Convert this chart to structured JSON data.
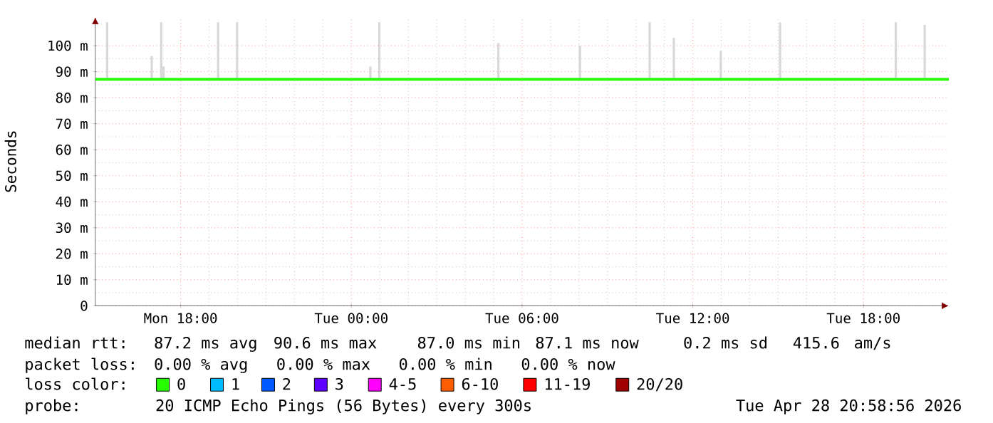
{
  "chart_data": {
    "type": "line",
    "ylabel": "Seconds",
    "xlim": [
      "2026-04-27T15:00",
      "2026-04-28T21:00"
    ],
    "xticks": [
      {
        "value": "2026-04-27T18:00",
        "label": "Mon 18:00"
      },
      {
        "value": "2026-04-28T00:00",
        "label": "Tue 00:00"
      },
      {
        "value": "2026-04-28T06:00",
        "label": "Tue 06:00"
      },
      {
        "value": "2026-04-28T12:00",
        "label": "Tue 12:00"
      },
      {
        "value": "2026-04-28T18:00",
        "label": "Tue 18:00"
      }
    ],
    "ylim": [
      0,
      111
    ],
    "yticks": [
      0,
      {
        "value": 10,
        "label": "10 m"
      },
      {
        "value": 20,
        "label": "20 m"
      },
      {
        "value": 30,
        "label": "30 m"
      },
      {
        "value": 40,
        "label": "40 m"
      },
      {
        "value": 50,
        "label": "50 m"
      },
      {
        "value": 60,
        "label": "60 m"
      },
      {
        "value": 70,
        "label": "70 m"
      },
      {
        "value": 80,
        "label": "80 m"
      },
      {
        "value": 90,
        "label": "90 m"
      },
      {
        "value": 100,
        "label": "100 m"
      }
    ],
    "grid": true,
    "legend": "bottom",
    "legend_title": "loss color:",
    "series": [
      {
        "type": "bar",
        "color": "#d8d8d8",
        "x": [
          "2026-04-27T15:25",
          "2026-04-27T16:59",
          "2026-04-27T17:19",
          "2026-04-27T17:24",
          "2026-04-27T19:19",
          "2026-04-27T19:59",
          "2026-04-28T00:40",
          "2026-04-28T00:59",
          "2026-04-28T05:10",
          "2026-04-28T08:02",
          "2026-04-28T10:29",
          "2026-04-28T11:20",
          "2026-04-28T12:59",
          "2026-04-28T15:04",
          "2026-04-28T19:08",
          "2026-04-28T20:09"
        ],
        "base": [
          87,
          87,
          87,
          87,
          87,
          87,
          87,
          87,
          87,
          87,
          87,
          87,
          87,
          87,
          87,
          87
        ],
        "values": [
          22,
          9,
          22,
          5,
          22,
          22,
          5,
          22,
          14,
          13,
          22,
          16,
          11,
          22,
          22,
          21
        ]
      },
      {
        "name": "0",
        "color": "#26ff00",
        "x": [
          "2026-04-27T15:00",
          "2026-04-28T21:00"
        ],
        "values": [
          87,
          87
        ]
      },
      {
        "name": "1",
        "color": "#00bbff"
      },
      {
        "name": "2",
        "color": "#0059ff"
      },
      {
        "name": "3",
        "color": "#5e00ff"
      },
      {
        "name": "4-5",
        "color": "#ff00ff"
      },
      {
        "name": "6-10",
        "color": "#ff5e00"
      },
      {
        "name": "11-19",
        "color": "#ff0000"
      },
      {
        "name": "20/20",
        "color": "#a10000"
      }
    ],
    "annotations": [
      "median rtt:",
      "87.2 ms avg",
      "90.6 ms max",
      "87.0 ms min",
      "87.1 ms now",
      "0.2 ms sd",
      "415.6",
      "am/s",
      "packet loss:",
      "0.00 % avg",
      "0.00 % max",
      "0.00 % min",
      "0.00 % now",
      "probe:",
      "20 ICMP Echo Pings (56 Bytes) every 300s",
      "Tue Apr 28 20:58:56 2026"
    ]
  }
}
